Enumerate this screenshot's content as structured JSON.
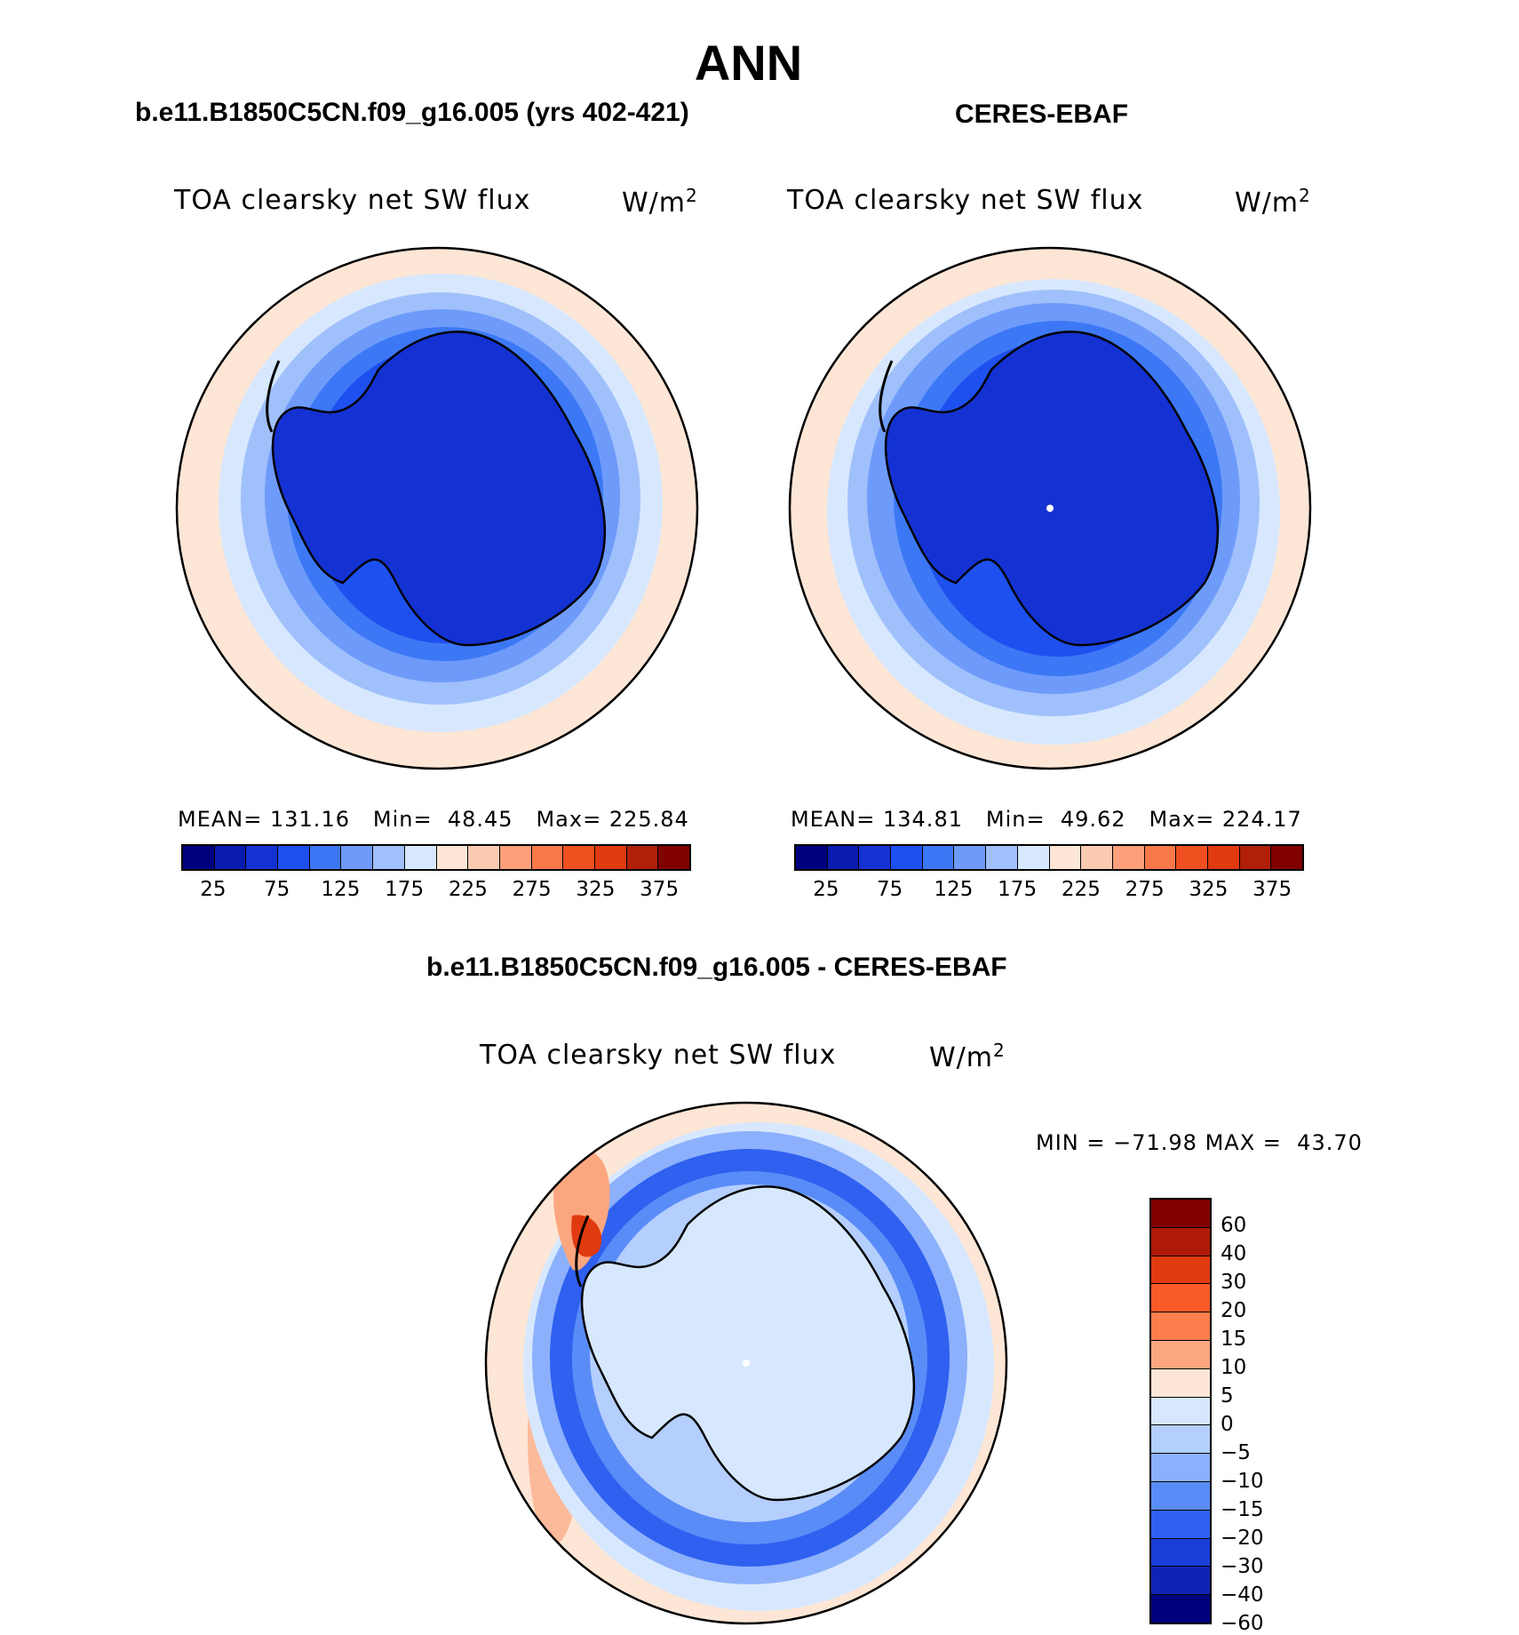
{
  "title": "ANN",
  "chart_data": [
    {
      "type": "heatmap",
      "case": "b.e11.B1850C5CN.f09_g16.005 (yrs 402-421)",
      "variable": "TOA clearsky net SW flux",
      "units": "W/m",
      "units_exp": "2",
      "stats": {
        "mean_label": "MEAN=",
        "mean": "131.16",
        "min_label": "Min=",
        "min": "48.45",
        "max_label": "Max=",
        "max": "225.84"
      },
      "levels": [
        "25",
        "75",
        "125",
        "175",
        "225",
        "275",
        "325",
        "375"
      ],
      "colors": [
        "#00007f",
        "#0a1bb0",
        "#1432d2",
        "#1e50f0",
        "#3c78f5",
        "#6e9bfa",
        "#a0c0fc",
        "#d7e8fe",
        "#fde6d6",
        "#fccab0",
        "#fba07a",
        "#f97848",
        "#f05020",
        "#e03a10",
        "#b02008",
        "#800000"
      ]
    },
    {
      "type": "heatmap",
      "case": "CERES-EBAF",
      "variable": "TOA clearsky net SW flux",
      "units": "W/m",
      "units_exp": "2",
      "stats": {
        "mean_label": "MEAN=",
        "mean": "134.81",
        "min_label": "Min=",
        "min": "49.62",
        "max_label": "Max=",
        "max": "224.17"
      },
      "levels": [
        "25",
        "75",
        "125",
        "175",
        "225",
        "275",
        "325",
        "375"
      ],
      "colors": [
        "#00007f",
        "#0a1bb0",
        "#1432d2",
        "#1e50f0",
        "#3c78f5",
        "#6e9bfa",
        "#a0c0fc",
        "#d7e8fe",
        "#fde6d6",
        "#fccab0",
        "#fba07a",
        "#f97848",
        "#f05020",
        "#e03a10",
        "#b02008",
        "#800000"
      ]
    },
    {
      "type": "heatmap",
      "case": "b.e11.B1850C5CN.f09_g16.005 - CERES-EBAF",
      "variable": "TOA clearsky net SW flux",
      "units": "W/m",
      "units_exp": "2",
      "stats": {
        "min_label": "MIN =",
        "min": "−71.98",
        "max_label": "MAX =",
        "max": "43.70"
      },
      "levels": [
        "60",
        "40",
        "30",
        "20",
        "15",
        "10",
        "5",
        "0",
        "−5",
        "−10",
        "−15",
        "−20",
        "−30",
        "−40",
        "−60"
      ],
      "colors": [
        "#800000",
        "#b01a08",
        "#e03a10",
        "#fa5a28",
        "#fc7e4c",
        "#fca680",
        "#fde6d6",
        "#d7e8fe",
        "#b4cefd",
        "#8cb0fb",
        "#5a8cf7",
        "#2f60f0",
        "#1a3ed8",
        "#0e24b4",
        "#00007f"
      ]
    }
  ]
}
